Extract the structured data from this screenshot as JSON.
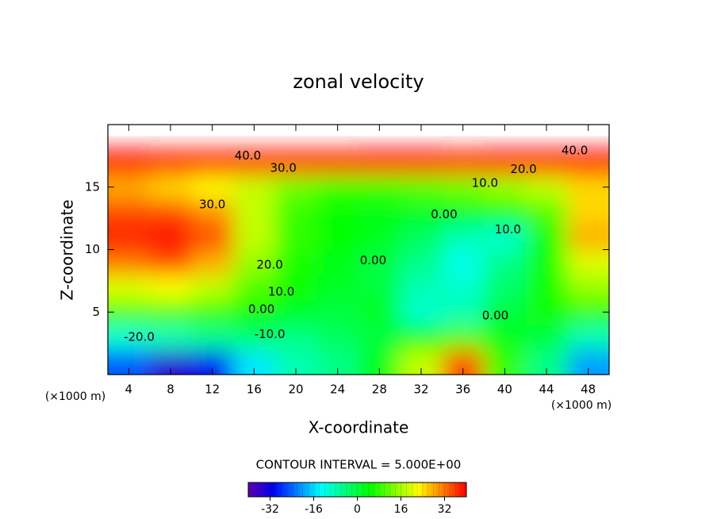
{
  "chart_data": {
    "type": "contour",
    "title": "zonal velocity",
    "xlabel": "X-coordinate",
    "ylabel": "Z-coordinate",
    "xunit": "(×1000 m)",
    "footer": "CONTOUR INTERVAL = 5.000E+00",
    "colormap": "rainbow",
    "clim": [
      -40,
      40
    ],
    "cticks": [
      -32,
      -16,
      0,
      16,
      32
    ],
    "xlim": [
      2,
      50
    ],
    "ylim": [
      0,
      20
    ],
    "xticks": [
      4,
      8,
      12,
      16,
      20,
      24,
      28,
      32,
      36,
      40,
      44,
      48
    ],
    "yticks": [
      5,
      10,
      15
    ],
    "x": [
      4,
      8,
      12,
      16,
      20,
      24,
      28,
      32,
      36,
      40,
      44,
      48
    ],
    "y": [
      1,
      3,
      5,
      7,
      9,
      11,
      13,
      15,
      17,
      19
    ],
    "z": [
      [
        -25,
        -35,
        -30,
        -15,
        -8,
        -5,
        3,
        18,
        35,
        8,
        -5,
        -20
      ],
      [
        -10,
        -8,
        -5,
        -3,
        -5,
        -2,
        0,
        5,
        10,
        3,
        0,
        -8
      ],
      [
        10,
        10,
        8,
        5,
        2,
        0,
        2,
        -10,
        -8,
        0,
        5,
        8
      ],
      [
        20,
        22,
        18,
        10,
        5,
        2,
        0,
        -8,
        -10,
        -3,
        5,
        15
      ],
      [
        32,
        35,
        28,
        15,
        6,
        3,
        0,
        -5,
        -12,
        -5,
        5,
        20
      ],
      [
        38,
        40,
        35,
        18,
        8,
        4,
        3,
        -2,
        -8,
        -10,
        5,
        28
      ],
      [
        35,
        35,
        30,
        18,
        8,
        4,
        3,
        2,
        3,
        5,
        10,
        25
      ],
      [
        28,
        25,
        22,
        18,
        12,
        8,
        8,
        10,
        12,
        15,
        18,
        25
      ],
      [
        40,
        38,
        38,
        38,
        38,
        38,
        40,
        40,
        38,
        40,
        42,
        40
      ],
      [
        null,
        null,
        null,
        null,
        null,
        null,
        null,
        null,
        null,
        null,
        null,
        null
      ]
    ],
    "annotations": [
      {
        "text": "40.0",
        "x": 15.4,
        "y": 17.5
      },
      {
        "text": "30.0",
        "x": 18.8,
        "y": 16.5
      },
      {
        "text": "40.0",
        "x": 46.7,
        "y": 17.9
      },
      {
        "text": "20.0",
        "x": 41.8,
        "y": 16.4
      },
      {
        "text": "10.0",
        "x": 38.1,
        "y": 15.3
      },
      {
        "text": "30.0",
        "x": 12,
        "y": 13.6
      },
      {
        "text": "20.0",
        "x": 17.5,
        "y": 8.75
      },
      {
        "text": "10.0",
        "x": 18.6,
        "y": 6.6
      },
      {
        "text": "0.00",
        "x": 16.7,
        "y": 5.2
      },
      {
        "text": "-10.0",
        "x": 17.5,
        "y": 3.2
      },
      {
        "text": "-20.0",
        "x": 5,
        "y": 3
      },
      {
        "text": "0.00",
        "x": 34.2,
        "y": 12.8
      },
      {
        "text": "10.0",
        "x": 40.3,
        "y": 11.6
      },
      {
        "text": "0.00",
        "x": 27.4,
        "y": 9.1
      },
      {
        "text": "0.00",
        "x": 39.1,
        "y": 4.7
      }
    ]
  }
}
